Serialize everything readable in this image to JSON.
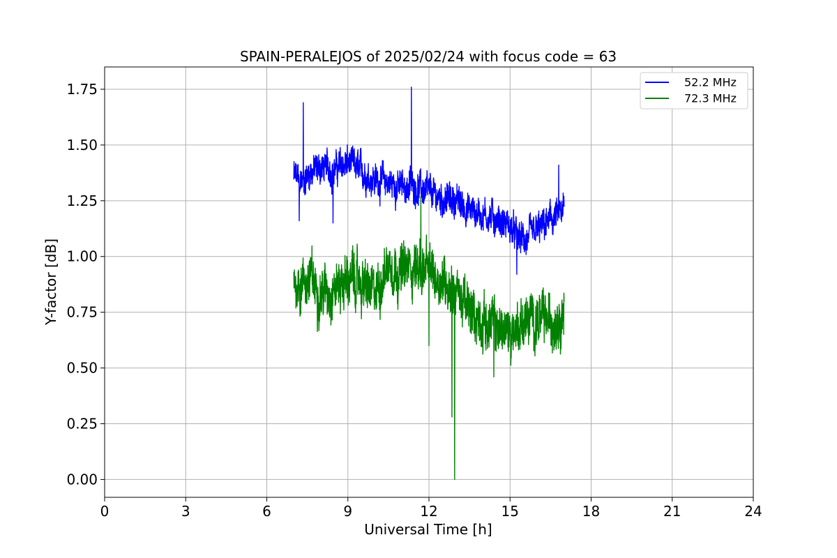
{
  "chart_data": {
    "type": "line",
    "title": "SPAIN-PERALEJOS of 2025/02/24 with focus code = 63",
    "xlabel": "Universal Time [h]",
    "ylabel": "Y-factor [dB]",
    "xlim": [
      0,
      24
    ],
    "ylim": [
      -0.08,
      1.85
    ],
    "xticks": [
      0,
      3,
      6,
      9,
      12,
      15,
      18,
      21,
      24
    ],
    "xtick_labels": [
      "0",
      "3",
      "6",
      "9",
      "12",
      "15",
      "18",
      "21",
      "24"
    ],
    "yticks": [
      0.0,
      0.25,
      0.5,
      0.75,
      1.0,
      1.25,
      1.5,
      1.75
    ],
    "ytick_labels": [
      "0.00",
      "0.25",
      "0.50",
      "0.75",
      "1.00",
      "1.25",
      "1.50",
      "1.75"
    ],
    "grid": true,
    "legend": "top-right",
    "series": [
      {
        "name": "52.2 MHz",
        "color": "#0000ff",
        "noise_amplitude": 0.05,
        "x": [
          7.0,
          7.3,
          7.6,
          8.0,
          8.5,
          9.0,
          9.5,
          10.0,
          10.5,
          11.0,
          11.5,
          12.0,
          12.5,
          13.0,
          13.5,
          14.0,
          14.5,
          15.0,
          15.3,
          15.6,
          16.0,
          16.5,
          17.0
        ],
        "y": [
          1.36,
          1.33,
          1.38,
          1.4,
          1.39,
          1.42,
          1.38,
          1.35,
          1.33,
          1.31,
          1.32,
          1.28,
          1.26,
          1.25,
          1.21,
          1.19,
          1.17,
          1.13,
          1.08,
          1.07,
          1.11,
          1.16,
          1.2
        ],
        "spikes": [
          {
            "x": 7.35,
            "y": 1.69
          },
          {
            "x": 7.2,
            "y": 1.16
          },
          {
            "x": 8.45,
            "y": 1.15
          },
          {
            "x": 11.35,
            "y": 1.76
          },
          {
            "x": 15.25,
            "y": 0.92
          },
          {
            "x": 16.8,
            "y": 1.41
          }
        ]
      },
      {
        "name": "72.3 MHz",
        "color": "#008000",
        "noise_amplitude": 0.08,
        "x": [
          7.0,
          7.3,
          7.6,
          8.0,
          8.5,
          9.0,
          9.5,
          10.0,
          10.5,
          11.0,
          11.5,
          12.0,
          12.5,
          13.0,
          13.5,
          14.0,
          14.5,
          15.0,
          15.5,
          16.0,
          16.5,
          17.0
        ],
        "y": [
          0.89,
          0.88,
          0.9,
          0.84,
          0.86,
          0.9,
          0.88,
          0.82,
          0.98,
          0.93,
          0.96,
          0.93,
          0.9,
          0.85,
          0.75,
          0.71,
          0.68,
          0.66,
          0.71,
          0.72,
          0.7,
          0.77
        ],
        "spikes": [
          {
            "x": 12.85,
            "y": 0.28
          },
          {
            "x": 12.95,
            "y": 0.0
          },
          {
            "x": 11.7,
            "y": 1.27
          },
          {
            "x": 12.0,
            "y": 0.6
          },
          {
            "x": 14.4,
            "y": 0.46
          }
        ]
      }
    ]
  }
}
